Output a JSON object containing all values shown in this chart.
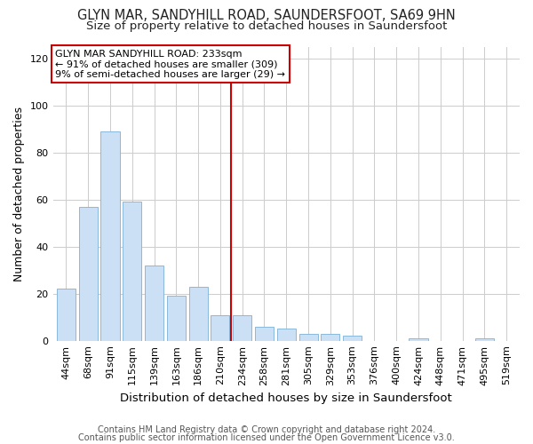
{
  "title": "GLYN MAR, SANDYHILL ROAD, SAUNDERSFOOT, SA69 9HN",
  "subtitle": "Size of property relative to detached houses in Saundersfoot",
  "xlabel": "Distribution of detached houses by size in Saundersfoot",
  "ylabel": "Number of detached properties",
  "bar_color": "#cce0f5",
  "bar_edge_color": "#7ab0d8",
  "categories": [
    "44sqm",
    "68sqm",
    "91sqm",
    "115sqm",
    "139sqm",
    "163sqm",
    "186sqm",
    "210sqm",
    "234sqm",
    "258sqm",
    "281sqm",
    "305sqm",
    "329sqm",
    "353sqm",
    "376sqm",
    "400sqm",
    "424sqm",
    "448sqm",
    "471sqm",
    "495sqm",
    "519sqm"
  ],
  "values": [
    22,
    57,
    89,
    59,
    32,
    19,
    23,
    11,
    11,
    6,
    5,
    3,
    3,
    2,
    0,
    0,
    1,
    0,
    0,
    1,
    0
  ],
  "ylim": [
    0,
    125
  ],
  "yticks": [
    0,
    20,
    40,
    60,
    80,
    100,
    120
  ],
  "property_bin_index": 8,
  "vline_color": "#cc0000",
  "annotation_text": "GLYN MAR SANDYHILL ROAD: 233sqm\n← 91% of detached houses are smaller (309)\n9% of semi-detached houses are larger (29) →",
  "annotation_box_color": "#ffffff",
  "annotation_box_edge_color": "#cc0000",
  "footer_line1": "Contains HM Land Registry data © Crown copyright and database right 2024.",
  "footer_line2": "Contains public sector information licensed under the Open Government Licence v3.0.",
  "background_color": "#ffffff",
  "grid_color": "#cccccc",
  "title_fontsize": 10.5,
  "subtitle_fontsize": 9.5,
  "tick_fontsize": 8,
  "ylabel_fontsize": 9,
  "xlabel_fontsize": 9.5,
  "footer_fontsize": 7
}
